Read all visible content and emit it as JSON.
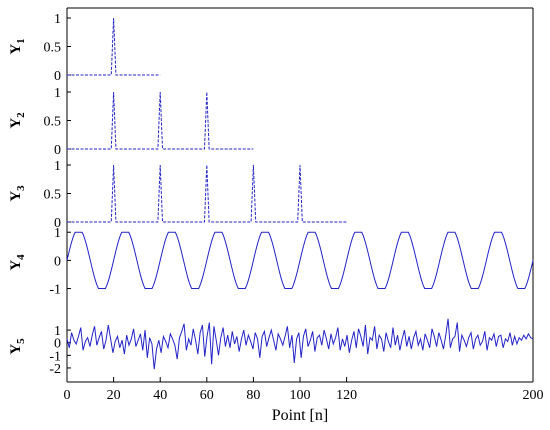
{
  "chart_data": {
    "type": "line",
    "xlabel": "Point [n]",
    "xlim": [
      0,
      200
    ],
    "xticks": [
      0,
      20,
      40,
      60,
      80,
      100,
      120,
      200
    ],
    "color": "#2323c8",
    "grid": false,
    "panels": [
      {
        "label_base": "Y",
        "label_sub": "1",
        "ylim": [
          0,
          1
        ],
        "yticks": [
          {
            "value": 0,
            "label": "0"
          },
          {
            "value": 0.5,
            "label": "0.5"
          },
          {
            "value": 1,
            "label": "1"
          }
        ],
        "signal": "pulse",
        "x_end": 40,
        "peaks": [
          20
        ],
        "peak_half_width": 1,
        "peak_value": 1
      },
      {
        "label_base": "Y",
        "label_sub": "2",
        "ylim": [
          0,
          1
        ],
        "yticks": [
          {
            "value": 0,
            "label": "0"
          },
          {
            "value": 0.5,
            "label": "0.5"
          },
          {
            "value": 1,
            "label": "1"
          }
        ],
        "signal": "pulse",
        "x_end": 80,
        "peaks": [
          20,
          40,
          60
        ],
        "peak_half_width": 1,
        "peak_value": 1
      },
      {
        "label_base": "Y",
        "label_sub": "3",
        "ylim": [
          0,
          1
        ],
        "yticks": [
          {
            "value": 0,
            "label": "0"
          },
          {
            "value": 0.5,
            "label": "0.5"
          },
          {
            "value": 1,
            "label": "1"
          }
        ],
        "signal": "pulse",
        "x_end": 120,
        "peaks": [
          20,
          40,
          60,
          80,
          100
        ],
        "peak_half_width": 1,
        "peak_value": 1
      },
      {
        "label_base": "Y",
        "label_sub": "4",
        "ylim": [
          -1.3,
          1.15
        ],
        "yticks": [
          {
            "value": -1,
            "label": "-1"
          },
          {
            "value": 0,
            "label": "0"
          },
          {
            "value": 1,
            "label": "1"
          }
        ],
        "signal": "sine",
        "x_end": 200,
        "period": 20,
        "phase_x": 0,
        "amplitude": 1,
        "clip": 1
      },
      {
        "label_base": "Y",
        "label_sub": "5",
        "ylim": [
          -2.4,
          1.8
        ],
        "yticks": [
          {
            "value": -2,
            "label": "-2"
          },
          {
            "value": -1,
            "label": "-1"
          },
          {
            "value": 0,
            "label": "0"
          },
          {
            "value": 1,
            "label": "1"
          }
        ],
        "signal": "noise",
        "x_end": 200,
        "points": [
          0.3,
          -0.4,
          0.8,
          0.2,
          -0.1,
          0.5,
          1.2,
          -0.6,
          0.1,
          0.4,
          -0.3,
          0.6,
          1.3,
          -0.2,
          0.4,
          0.9,
          -0.5,
          0.2,
          1.4,
          0.3,
          -0.8,
          0.1,
          0.5,
          -0.4,
          0.2,
          -0.9,
          0.6,
          -0.2,
          0.3,
          1.1,
          -0.3,
          0.2,
          0.7,
          -0.6,
          1.0,
          -1.2,
          0.4,
          -0.1,
          -2.1,
          -0.5,
          0.2,
          -0.8,
          0.5,
          0.1,
          -0.4,
          0.7,
          0.3,
          -0.2,
          -1.3,
          0.4,
          0.9,
          1.5,
          -0.6,
          0.3,
          -0.2,
          1.1,
          0.2,
          -0.9,
          0.8,
          1.4,
          -1.1,
          0.5,
          1.6,
          -1.7,
          1.3,
          0.2,
          -1.0,
          0.4,
          1.2,
          -0.3,
          0.6,
          -0.4,
          0.9,
          -0.1,
          0.5,
          -0.7,
          0.3,
          1.0,
          -0.2,
          0.6,
          0.1,
          -0.5,
          0.8,
          0.3,
          -1.2,
          0.5,
          0.9,
          -0.3,
          0.4,
          1.0,
          0.2,
          -0.6,
          0.7,
          0.3,
          -0.2,
          0.5,
          1.3,
          -0.4,
          0.6,
          -1.6,
          0.3,
          0.8,
          -1.2,
          0.5,
          1.1,
          -0.3,
          0.2,
          0.9,
          -0.7,
          0.4,
          0.6,
          -0.2,
          1.0,
          0.3,
          -0.5,
          0.7,
          -0.1,
          0.4,
          1.2,
          -0.6,
          0.3,
          -0.3,
          0.6,
          -0.8,
          0.2,
          0.9,
          -0.4,
          1.1,
          0.5,
          -0.3,
          1.4,
          -0.9,
          0.4,
          0.2,
          1.3,
          -0.5,
          0.6,
          0.3,
          -0.7,
          0.8,
          0.1,
          -0.4,
          1.2,
          -0.2,
          0.6,
          -0.6,
          0.3,
          1.0,
          -0.3,
          0.5,
          -0.5,
          0.4,
          0.9,
          -0.2,
          0.3,
          -0.6,
          0.7,
          0.2,
          -0.4,
          1.1,
          0.5,
          -0.3,
          0.8,
          0.2,
          -0.5,
          0.6,
          1.9,
          -0.4,
          0.3,
          0.5,
          1.6,
          -0.7,
          0.6,
          0.2,
          -0.3,
          0.4,
          0.8,
          -0.5,
          0.3,
          0.6,
          -0.2,
          0.1,
          0.9,
          -0.6,
          0.4,
          0.2,
          0.7,
          -0.3,
          0.5,
          0.6,
          -0.4,
          0.3,
          0.1,
          0.8,
          -0.2,
          0.5,
          -0.1,
          0.4,
          0.2,
          0.6,
          0.3,
          0.7,
          0.4,
          0.3
        ]
      }
    ]
  }
}
